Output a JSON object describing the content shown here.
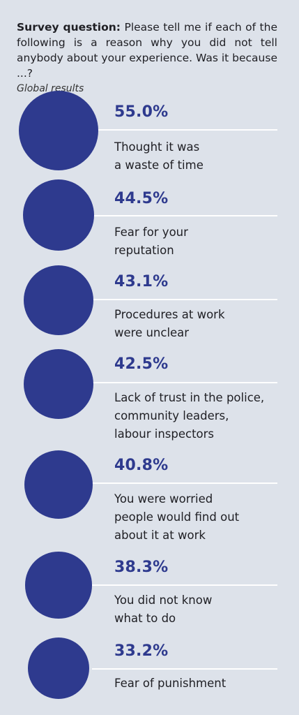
{
  "header": {
    "question_label": "Survey question:",
    "question_text": "Please tell me if each of the following is a reason why you did not tell anybody about your experience. Was it because ...?",
    "subtitle": "Global results"
  },
  "chart_data": {
    "type": "bubble",
    "unit": "%",
    "items": [
      {
        "value": 55.0,
        "value_label": "55.0%",
        "label": "Thought it was\na waste of time"
      },
      {
        "value": 44.5,
        "value_label": "44.5%",
        "label": "Fear for your\nreputation"
      },
      {
        "value": 43.1,
        "value_label": "43.1%",
        "label": "Procedures at work\nwere unclear"
      },
      {
        "value": 42.5,
        "value_label": "42.5%",
        "label": "Lack of trust in the police,\ncommunity leaders,\nlabour inspectors"
      },
      {
        "value": 40.8,
        "value_label": "40.8%",
        "label": "You were worried\npeople would find out\nabout it at work"
      },
      {
        "value": 38.3,
        "value_label": "38.3%",
        "label": "You did not know\nwhat to do"
      },
      {
        "value": 33.2,
        "value_label": "33.2%",
        "label": "Fear of punishment"
      }
    ]
  },
  "colors": {
    "background": "#dde2ea",
    "bubble": "#2e3a8e",
    "percent_text": "#2e3a8e",
    "rule": "#ffffff"
  }
}
